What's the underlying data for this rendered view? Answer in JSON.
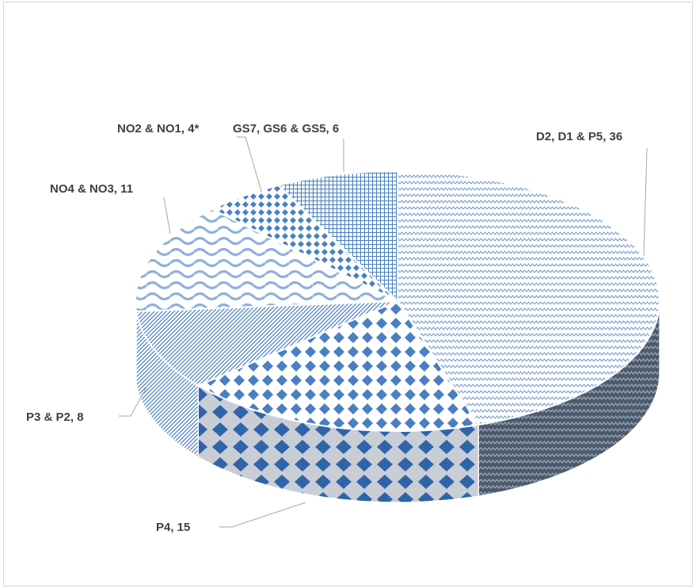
{
  "chart_data": {
    "type": "pie",
    "style": "3d",
    "title": "",
    "slices": [
      {
        "label": "D2, D1 & P5",
        "value": 36,
        "pattern": "zigzag",
        "display": "D2, D1 & P5, 36"
      },
      {
        "label": "P4",
        "value": 15,
        "pattern": "diamond",
        "display": "P4, 15"
      },
      {
        "label": "P3 & P2",
        "value": 8,
        "pattern": "diagonal",
        "display": "P3 & P2, 8"
      },
      {
        "label": "NO4 & NO3",
        "value": 11,
        "pattern": "wave",
        "display": "NO4 & NO3, 11"
      },
      {
        "label": "NO2 & NO1",
        "value": 4,
        "pattern": "dots",
        "display": "NO2 & NO1, 4*"
      },
      {
        "label": "GS7, GS6 & GS5",
        "value": 6,
        "pattern": "grid",
        "display": "GS7, GS6 & GS5, 6"
      }
    ],
    "colors": {
      "pattern_fg": "#4a7fc1",
      "pattern_bg": "#ffffff",
      "side_dark": "#4d5a6a",
      "label_text": "#404040",
      "leader_line": "#a6a6a6",
      "border": "#d9d9d9"
    }
  }
}
